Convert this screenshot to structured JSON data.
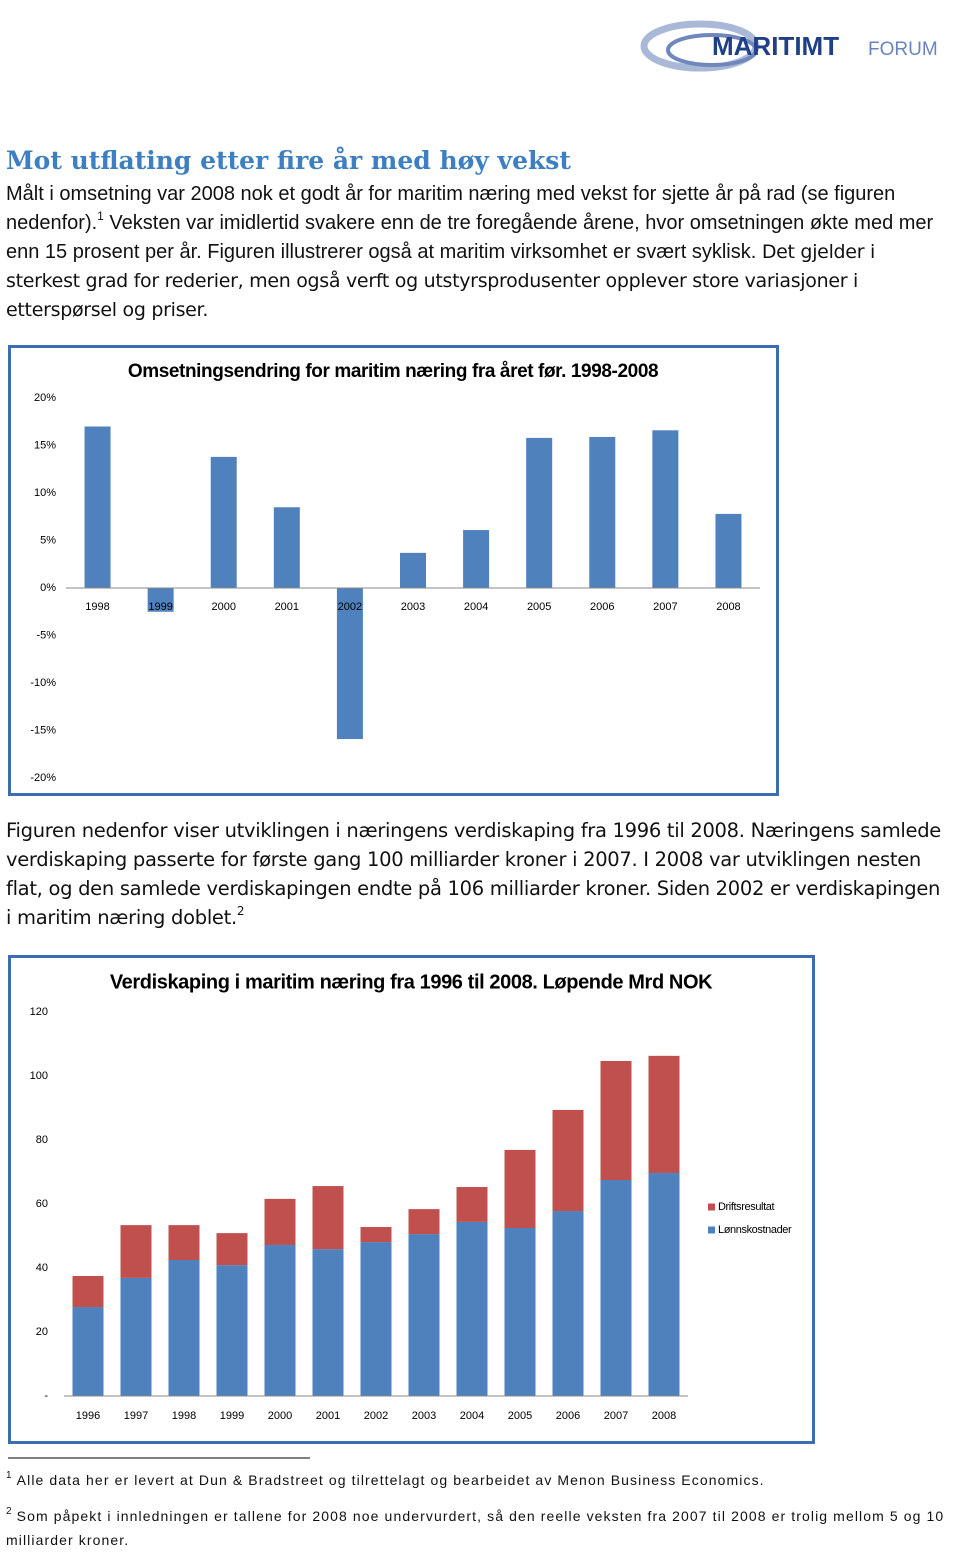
{
  "header": {
    "logo_main": "MARITIMT",
    "logo_sub": "FORUM"
  },
  "section": {
    "title": "Mot utflating etter fire år med høy vekst",
    "paragraph_1": {
      "text_a": "Målt i omsetning var 2008 nok et godt år for maritim næring med vekst for sjette år på rad (se figuren nedenfor).",
      "footnote_ref": "1",
      "text_b": " Veksten var imidlertid svakere enn de tre foregående årene, hvor omsetningen økte med mer enn 15 prosent per år. Figuren illustrerer også at maritim virksomhet er svært syklisk.",
      "text_c": "Det gjelder i sterkest grad for rederier, men også verft og utstyrsprodusenter opplever store variasjoner i etterspørsel og priser."
    },
    "paragraph_2": {
      "text": "Figuren nedenfor viser utviklingen i næringens verdiskaping fra 1996 til 2008. Næringens samlede verdiskaping passerte for første gang 100 milliarder kroner i 2007. I 2008 var utviklingen nesten flat, og den samlede verdiskapingen endte på 106 milliarder kroner. Siden 2002 er verdiskapingen i maritim næring doblet.",
      "footnote_ref": "2"
    }
  },
  "chart_data": [
    {
      "type": "bar",
      "title": "Omsetningsendring for maritim næring fra året før. 1998-2008",
      "categories": [
        "1998",
        "1999",
        "2000",
        "2001",
        "2002",
        "2003",
        "2004",
        "2005",
        "2006",
        "2007",
        "2008"
      ],
      "values": [
        17.0,
        -2.5,
        13.8,
        8.5,
        -15.9,
        3.7,
        6.1,
        15.8,
        15.9,
        16.6,
        7.8
      ],
      "color": "#4f81bd",
      "ylim": [
        -20,
        20
      ],
      "yticks": [
        {
          "value": -20,
          "label": "-20%"
        },
        {
          "value": -15,
          "label": "-15%"
        },
        {
          "value": -10,
          "label": "-10%"
        },
        {
          "value": -5,
          "label": "-5%"
        },
        {
          "value": 0,
          "label": "0%"
        },
        {
          "value": 5,
          "label": "5%"
        },
        {
          "value": 10,
          "label": "10%"
        },
        {
          "value": 15,
          "label": "15%"
        },
        {
          "value": 20,
          "label": "20%"
        }
      ],
      "grid": false
    },
    {
      "type": "stacked_bar",
      "title": "Verdiskaping i maritim næring fra 1996 til 2008. Løpende Mrd NOK",
      "categories": [
        "1996",
        "1997",
        "1998",
        "1999",
        "2000",
        "2001",
        "2002",
        "2003",
        "2004",
        "2005",
        "2006",
        "2007",
        "2008"
      ],
      "series": [
        {
          "name": "Lønnskostnader",
          "color": "#4f81bd",
          "values": [
            27.8,
            36.9,
            42.5,
            40.9,
            47.2,
            45.9,
            48.1,
            50.6,
            54.4,
            52.5,
            57.8,
            67.5,
            69.7
          ]
        },
        {
          "name": "Driftsresultat",
          "color": "#c0504d",
          "values": [
            9.7,
            16.5,
            10.9,
            10.0,
            14.4,
            19.7,
            4.7,
            7.8,
            10.9,
            24.4,
            31.6,
            37.2,
            36.6
          ]
        }
      ],
      "ylim": [
        0,
        120
      ],
      "yticks": [
        {
          "value": 0,
          "label": "-"
        },
        20,
        40,
        60,
        80,
        100,
        120
      ],
      "grid": false,
      "legend": "right"
    }
  ],
  "footnotes": [
    {
      "number": "1",
      "text": "Alle data her er levert at Dun & Bradstreet og tilrettelagt og bearbeidet av Menon Business Economics."
    },
    {
      "number": "2",
      "text": "Som påpekt i innledningen er tallene for 2008 noe undervurdert, så den reelle veksten fra 2007 til 2008 er trolig mellom 5 og 10 milliarder kroner."
    }
  ]
}
